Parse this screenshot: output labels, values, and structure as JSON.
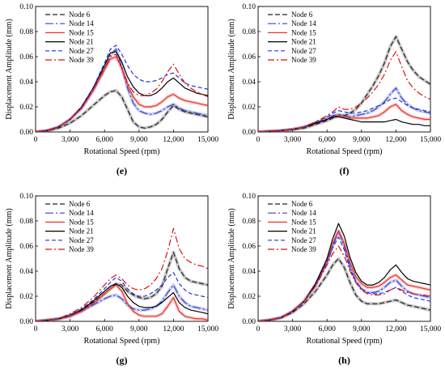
{
  "chart_data": [
    {
      "type": "line",
      "panel_label": "(e)",
      "xlabel": "Rotational Speed (rpm)",
      "ylabel": "Displacement Amplitude (mm)",
      "xlim": [
        0,
        15000
      ],
      "ylim": [
        0,
        0.1
      ],
      "x_ticks": [
        "0",
        "3,000",
        "6,000",
        "9,000",
        "12,000",
        "15,000"
      ],
      "y_ticks": [
        "0.00",
        "0.02",
        "0.04",
        "0.06",
        "0.08",
        "0.10"
      ],
      "legend_position": "top-left",
      "x": [
        0,
        1000,
        2000,
        3000,
        4000,
        5000,
        6000,
        6500,
        7000,
        7500,
        8000,
        8500,
        9000,
        9500,
        10000,
        10500,
        11000,
        11500,
        12000,
        12500,
        13000,
        13500,
        14000,
        14500,
        15000
      ],
      "series": [
        {
          "name": "Node 6",
          "color": "#222222",
          "dash": "6,3",
          "halo": true,
          "values": [
            0,
            0.001,
            0.003,
            0.007,
            0.013,
            0.021,
            0.029,
            0.032,
            0.033,
            0.028,
            0.018,
            0.008,
            0.004,
            0.003,
            0.004,
            0.006,
            0.01,
            0.016,
            0.021,
            0.018,
            0.016,
            0.015,
            0.014,
            0.013,
            0.012
          ]
        },
        {
          "name": "Node 14",
          "color": "#3344cc",
          "dash": "10,3,2,3",
          "halo": true,
          "values": [
            0,
            0.001,
            0.004,
            0.01,
            0.019,
            0.033,
            0.05,
            0.061,
            0.066,
            0.052,
            0.035,
            0.023,
            0.017,
            0.015,
            0.014,
            0.015,
            0.017,
            0.02,
            0.022,
            0.019,
            0.017,
            0.016,
            0.015,
            0.014,
            0.013
          ]
        },
        {
          "name": "Node 15",
          "color": "#e8342e",
          "dash": "",
          "halo": true,
          "values": [
            0,
            0.001,
            0.004,
            0.01,
            0.019,
            0.033,
            0.05,
            0.058,
            0.06,
            0.051,
            0.038,
            0.028,
            0.022,
            0.02,
            0.02,
            0.021,
            0.024,
            0.028,
            0.03,
            0.027,
            0.025,
            0.024,
            0.023,
            0.022,
            0.021
          ]
        },
        {
          "name": "Node 21",
          "color": "#000000",
          "dash": "",
          "halo": false,
          "values": [
            0,
            0.001,
            0.004,
            0.01,
            0.02,
            0.035,
            0.053,
            0.063,
            0.064,
            0.056,
            0.044,
            0.036,
            0.031,
            0.029,
            0.029,
            0.031,
            0.035,
            0.04,
            0.043,
            0.039,
            0.035,
            0.033,
            0.031,
            0.03,
            0.029
          ]
        },
        {
          "name": "Node 27",
          "color": "#2233dd",
          "dash": "5,3",
          "halo": false,
          "values": [
            0,
            0.001,
            0.004,
            0.01,
            0.02,
            0.035,
            0.055,
            0.066,
            0.069,
            0.062,
            0.053,
            0.046,
            0.042,
            0.04,
            0.04,
            0.041,
            0.043,
            0.046,
            0.047,
            0.043,
            0.039,
            0.037,
            0.036,
            0.035,
            0.034
          ]
        },
        {
          "name": "Node 39",
          "color": "#dd1111",
          "dash": "8,3,2,3",
          "halo": false,
          "values": [
            0,
            0.001,
            0.004,
            0.01,
            0.019,
            0.033,
            0.051,
            0.06,
            0.062,
            0.051,
            0.039,
            0.032,
            0.029,
            0.029,
            0.031,
            0.034,
            0.04,
            0.048,
            0.054,
            0.046,
            0.039,
            0.035,
            0.032,
            0.03,
            0.028
          ]
        }
      ]
    },
    {
      "type": "line",
      "panel_label": "(f)",
      "xlabel": "Rotational Speed (rpm)",
      "ylabel": "Displacement Amplitude (mm)",
      "xlim": [
        0,
        15000
      ],
      "ylim": [
        0,
        0.1
      ],
      "x_ticks": [
        "0",
        "3,000",
        "6,000",
        "9,000",
        "12,000",
        "15,000"
      ],
      "y_ticks": [
        "0.00",
        "0.02",
        "0.04",
        "0.06",
        "0.08",
        "0.10"
      ],
      "legend_position": "top-left",
      "x": [
        0,
        1000,
        2000,
        3000,
        4000,
        5000,
        6000,
        6500,
        7000,
        7500,
        8000,
        8500,
        9000,
        9500,
        10000,
        10500,
        11000,
        11500,
        12000,
        12500,
        13000,
        13500,
        14000,
        14500,
        15000
      ],
      "series": [
        {
          "name": "Node 6",
          "color": "#222222",
          "dash": "6,3",
          "halo": true,
          "values": [
            0,
            0.0005,
            0.001,
            0.002,
            0.003,
            0.006,
            0.009,
            0.011,
            0.013,
            0.013,
            0.015,
            0.018,
            0.023,
            0.03,
            0.037,
            0.045,
            0.055,
            0.068,
            0.076,
            0.066,
            0.056,
            0.049,
            0.044,
            0.041,
            0.038
          ]
        },
        {
          "name": "Node 14",
          "color": "#3344cc",
          "dash": "10,3,2,3",
          "halo": true,
          "values": [
            0,
            0.0005,
            0.001,
            0.002,
            0.004,
            0.007,
            0.011,
            0.013,
            0.014,
            0.013,
            0.012,
            0.013,
            0.014,
            0.015,
            0.017,
            0.02,
            0.024,
            0.03,
            0.035,
            0.027,
            0.022,
            0.019,
            0.017,
            0.016,
            0.015
          ]
        },
        {
          "name": "Node 15",
          "color": "#e8342e",
          "dash": "",
          "halo": true,
          "values": [
            0,
            0.0005,
            0.001,
            0.002,
            0.004,
            0.007,
            0.01,
            0.012,
            0.013,
            0.012,
            0.011,
            0.011,
            0.011,
            0.011,
            0.012,
            0.013,
            0.016,
            0.02,
            0.022,
            0.017,
            0.014,
            0.012,
            0.011,
            0.01,
            0.01
          ]
        },
        {
          "name": "Node 21",
          "color": "#000000",
          "dash": "",
          "halo": false,
          "values": [
            0,
            0.0005,
            0.001,
            0.002,
            0.004,
            0.007,
            0.01,
            0.012,
            0.012,
            0.011,
            0.01,
            0.009,
            0.008,
            0.008,
            0.008,
            0.008,
            0.008,
            0.009,
            0.01,
            0.008,
            0.007,
            0.006,
            0.006,
            0.005,
            0.005
          ]
        },
        {
          "name": "Node 27",
          "color": "#2233dd",
          "dash": "5,3",
          "halo": false,
          "values": [
            0,
            0.0005,
            0.001,
            0.002,
            0.004,
            0.008,
            0.012,
            0.015,
            0.017,
            0.016,
            0.015,
            0.015,
            0.016,
            0.017,
            0.019,
            0.021,
            0.023,
            0.026,
            0.027,
            0.024,
            0.021,
            0.019,
            0.018,
            0.017,
            0.016
          ]
        },
        {
          "name": "Node 39",
          "color": "#dd1111",
          "dash": "8,3,2,3",
          "halo": false,
          "values": [
            0,
            0.0005,
            0.001,
            0.002,
            0.004,
            0.008,
            0.013,
            0.016,
            0.02,
            0.018,
            0.018,
            0.02,
            0.023,
            0.027,
            0.032,
            0.038,
            0.046,
            0.057,
            0.064,
            0.052,
            0.041,
            0.035,
            0.031,
            0.028,
            0.026
          ]
        }
      ]
    },
    {
      "type": "line",
      "panel_label": "(g)",
      "xlabel": "Rotational Speed (rpm)",
      "ylabel": "Displacement Amplitude (mm)",
      "xlim": [
        0,
        15000
      ],
      "ylim": [
        0,
        0.1
      ],
      "x_ticks": [
        "0",
        "3,000",
        "6,000",
        "9,000",
        "12,000",
        "15,000"
      ],
      "y_ticks": [
        "0.00",
        "0.02",
        "0.04",
        "0.06",
        "0.08",
        "0.10"
      ],
      "legend_position": "top-left",
      "x": [
        0,
        1000,
        2000,
        3000,
        4000,
        5000,
        6000,
        6500,
        7000,
        7500,
        8000,
        8500,
        9000,
        9500,
        10000,
        10500,
        11000,
        11500,
        12000,
        12500,
        13000,
        13500,
        14000,
        14500,
        15000
      ],
      "series": [
        {
          "name": "Node 6",
          "color": "#222222",
          "dash": "6,3",
          "halo": true,
          "values": [
            0,
            0.001,
            0.002,
            0.005,
            0.009,
            0.015,
            0.022,
            0.026,
            0.03,
            0.029,
            0.024,
            0.021,
            0.019,
            0.018,
            0.019,
            0.022,
            0.028,
            0.042,
            0.055,
            0.042,
            0.035,
            0.032,
            0.031,
            0.03,
            0.029
          ]
        },
        {
          "name": "Node 14",
          "color": "#3344cc",
          "dash": "10,3,2,3",
          "halo": true,
          "values": [
            0,
            0.0008,
            0.002,
            0.004,
            0.008,
            0.013,
            0.018,
            0.02,
            0.021,
            0.018,
            0.013,
            0.01,
            0.009,
            0.009,
            0.01,
            0.012,
            0.016,
            0.023,
            0.029,
            0.02,
            0.015,
            0.012,
            0.011,
            0.01,
            0.009
          ]
        },
        {
          "name": "Node 15",
          "color": "#e8342e",
          "dash": "",
          "halo": true,
          "values": [
            0,
            0.0008,
            0.002,
            0.004,
            0.008,
            0.014,
            0.022,
            0.026,
            0.029,
            0.024,
            0.014,
            0.008,
            0.005,
            0.004,
            0.004,
            0.004,
            0.006,
            0.012,
            0.019,
            0.008,
            0.004,
            0.003,
            0.002,
            0.002,
            0.001
          ]
        },
        {
          "name": "Node 21",
          "color": "#000000",
          "dash": "",
          "halo": false,
          "values": [
            0,
            0.0008,
            0.002,
            0.005,
            0.009,
            0.016,
            0.024,
            0.028,
            0.03,
            0.027,
            0.02,
            0.015,
            0.012,
            0.011,
            0.011,
            0.012,
            0.015,
            0.019,
            0.023,
            0.015,
            0.011,
            0.009,
            0.008,
            0.007,
            0.006
          ]
        },
        {
          "name": "Node 27",
          "color": "#2233dd",
          "dash": "5,3",
          "halo": false,
          "values": [
            0,
            0.001,
            0.002,
            0.005,
            0.01,
            0.017,
            0.026,
            0.031,
            0.035,
            0.032,
            0.026,
            0.022,
            0.02,
            0.02,
            0.022,
            0.025,
            0.029,
            0.035,
            0.039,
            0.03,
            0.025,
            0.022,
            0.021,
            0.02,
            0.019
          ]
        },
        {
          "name": "Node 39",
          "color": "#dd1111",
          "dash": "8,3,2,3",
          "halo": false,
          "values": [
            0,
            0.001,
            0.002,
            0.006,
            0.011,
            0.019,
            0.029,
            0.034,
            0.037,
            0.034,
            0.029,
            0.026,
            0.025,
            0.026,
            0.029,
            0.034,
            0.042,
            0.056,
            0.074,
            0.058,
            0.05,
            0.047,
            0.045,
            0.044,
            0.042
          ]
        }
      ]
    },
    {
      "type": "line",
      "panel_label": "(h)",
      "xlabel": "Rotational Speed (rpm)",
      "ylabel": "Displacement Amplitude (mm)",
      "xlim": [
        0,
        15000
      ],
      "ylim": [
        0,
        0.1
      ],
      "x_ticks": [
        "0",
        "3,000",
        "6,000",
        "9,000",
        "12,000",
        "15,000"
      ],
      "y_ticks": [
        "0.00",
        "0.02",
        "0.04",
        "0.06",
        "0.08",
        "0.10"
      ],
      "legend_position": "top-left",
      "x": [
        0,
        1000,
        2000,
        3000,
        4000,
        5000,
        6000,
        6500,
        7000,
        7500,
        8000,
        8500,
        9000,
        9500,
        10000,
        10500,
        11000,
        11500,
        12000,
        12500,
        13000,
        13500,
        14000,
        14500,
        15000
      ],
      "series": [
        {
          "name": "Node 6",
          "color": "#222222",
          "dash": "6,3",
          "halo": true,
          "values": [
            0,
            0.001,
            0.003,
            0.007,
            0.014,
            0.024,
            0.037,
            0.045,
            0.05,
            0.043,
            0.031,
            0.021,
            0.016,
            0.014,
            0.014,
            0.014,
            0.015,
            0.016,
            0.017,
            0.015,
            0.013,
            0.012,
            0.011,
            0.01,
            0.009
          ]
        },
        {
          "name": "Node 14",
          "color": "#3344cc",
          "dash": "10,3,2,3",
          "halo": true,
          "values": [
            0,
            0.001,
            0.003,
            0.008,
            0.016,
            0.029,
            0.047,
            0.06,
            0.072,
            0.06,
            0.044,
            0.032,
            0.026,
            0.023,
            0.023,
            0.024,
            0.027,
            0.031,
            0.033,
            0.028,
            0.024,
            0.022,
            0.021,
            0.02,
            0.019
          ]
        },
        {
          "name": "Node 15",
          "color": "#e8342e",
          "dash": "",
          "halo": true,
          "values": [
            0,
            0.001,
            0.003,
            0.008,
            0.016,
            0.029,
            0.048,
            0.062,
            0.072,
            0.062,
            0.047,
            0.036,
            0.03,
            0.027,
            0.027,
            0.028,
            0.031,
            0.035,
            0.037,
            0.033,
            0.029,
            0.028,
            0.027,
            0.026,
            0.025
          ]
        },
        {
          "name": "Node 21",
          "color": "#000000",
          "dash": "",
          "halo": false,
          "values": [
            0,
            0.001,
            0.003,
            0.008,
            0.016,
            0.03,
            0.05,
            0.066,
            0.078,
            0.068,
            0.051,
            0.039,
            0.032,
            0.029,
            0.029,
            0.031,
            0.035,
            0.041,
            0.045,
            0.039,
            0.034,
            0.032,
            0.031,
            0.03,
            0.029
          ]
        },
        {
          "name": "Node 27",
          "color": "#2233dd",
          "dash": "5,3",
          "halo": false,
          "values": [
            0,
            0.001,
            0.003,
            0.008,
            0.016,
            0.029,
            0.047,
            0.059,
            0.067,
            0.057,
            0.042,
            0.032,
            0.026,
            0.023,
            0.022,
            0.022,
            0.023,
            0.025,
            0.027,
            0.024,
            0.021,
            0.019,
            0.018,
            0.017,
            0.016
          ]
        },
        {
          "name": "Node 39",
          "color": "#dd1111",
          "dash": "8,3,2,3",
          "halo": false,
          "values": [
            0,
            0.001,
            0.003,
            0.008,
            0.016,
            0.028,
            0.045,
            0.054,
            0.06,
            0.052,
            0.04,
            0.031,
            0.025,
            0.022,
            0.021,
            0.021,
            0.022,
            0.025,
            0.027,
            0.025,
            0.023,
            0.022,
            0.021,
            0.021,
            0.02
          ]
        }
      ]
    }
  ]
}
